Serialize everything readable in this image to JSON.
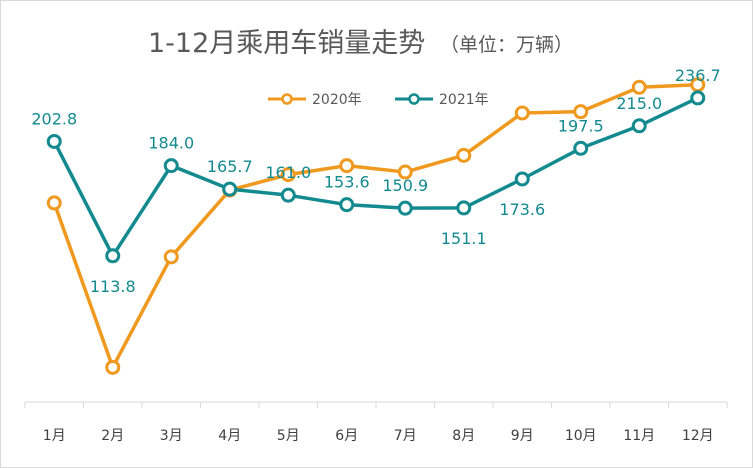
{
  "chart_data": {
    "type": "line",
    "title": "1-12月乘用车销量走势",
    "subtitle": "（单位：万辆）",
    "categories": [
      "1月",
      "2月",
      "3月",
      "4月",
      "5月",
      "6月",
      "7月",
      "8月",
      "9月",
      "10月",
      "11月",
      "12月"
    ],
    "series": [
      {
        "name": "2020年",
        "color": "#f0991f",
        "values": [
          155,
          27,
          113,
          165,
          177,
          184,
          179,
          192,
          225,
          226,
          245,
          247
        ],
        "labels": []
      },
      {
        "name": "2021年",
        "color": "#138a8f",
        "values": [
          202.8,
          113.8,
          184.0,
          165.7,
          161.0,
          153.6,
          150.9,
          151.1,
          173.6,
          197.5,
          215.0,
          236.7
        ],
        "labels": [
          "202.8",
          "113.8",
          "184.0",
          "165.7",
          "161.0",
          "153.6",
          "150.9",
          "151.1",
          "173.6",
          "197.5",
          "215.0",
          "236.7"
        ]
      }
    ],
    "ylim": [
      0,
      260
    ],
    "grid": false,
    "legend_position": "top-center"
  }
}
